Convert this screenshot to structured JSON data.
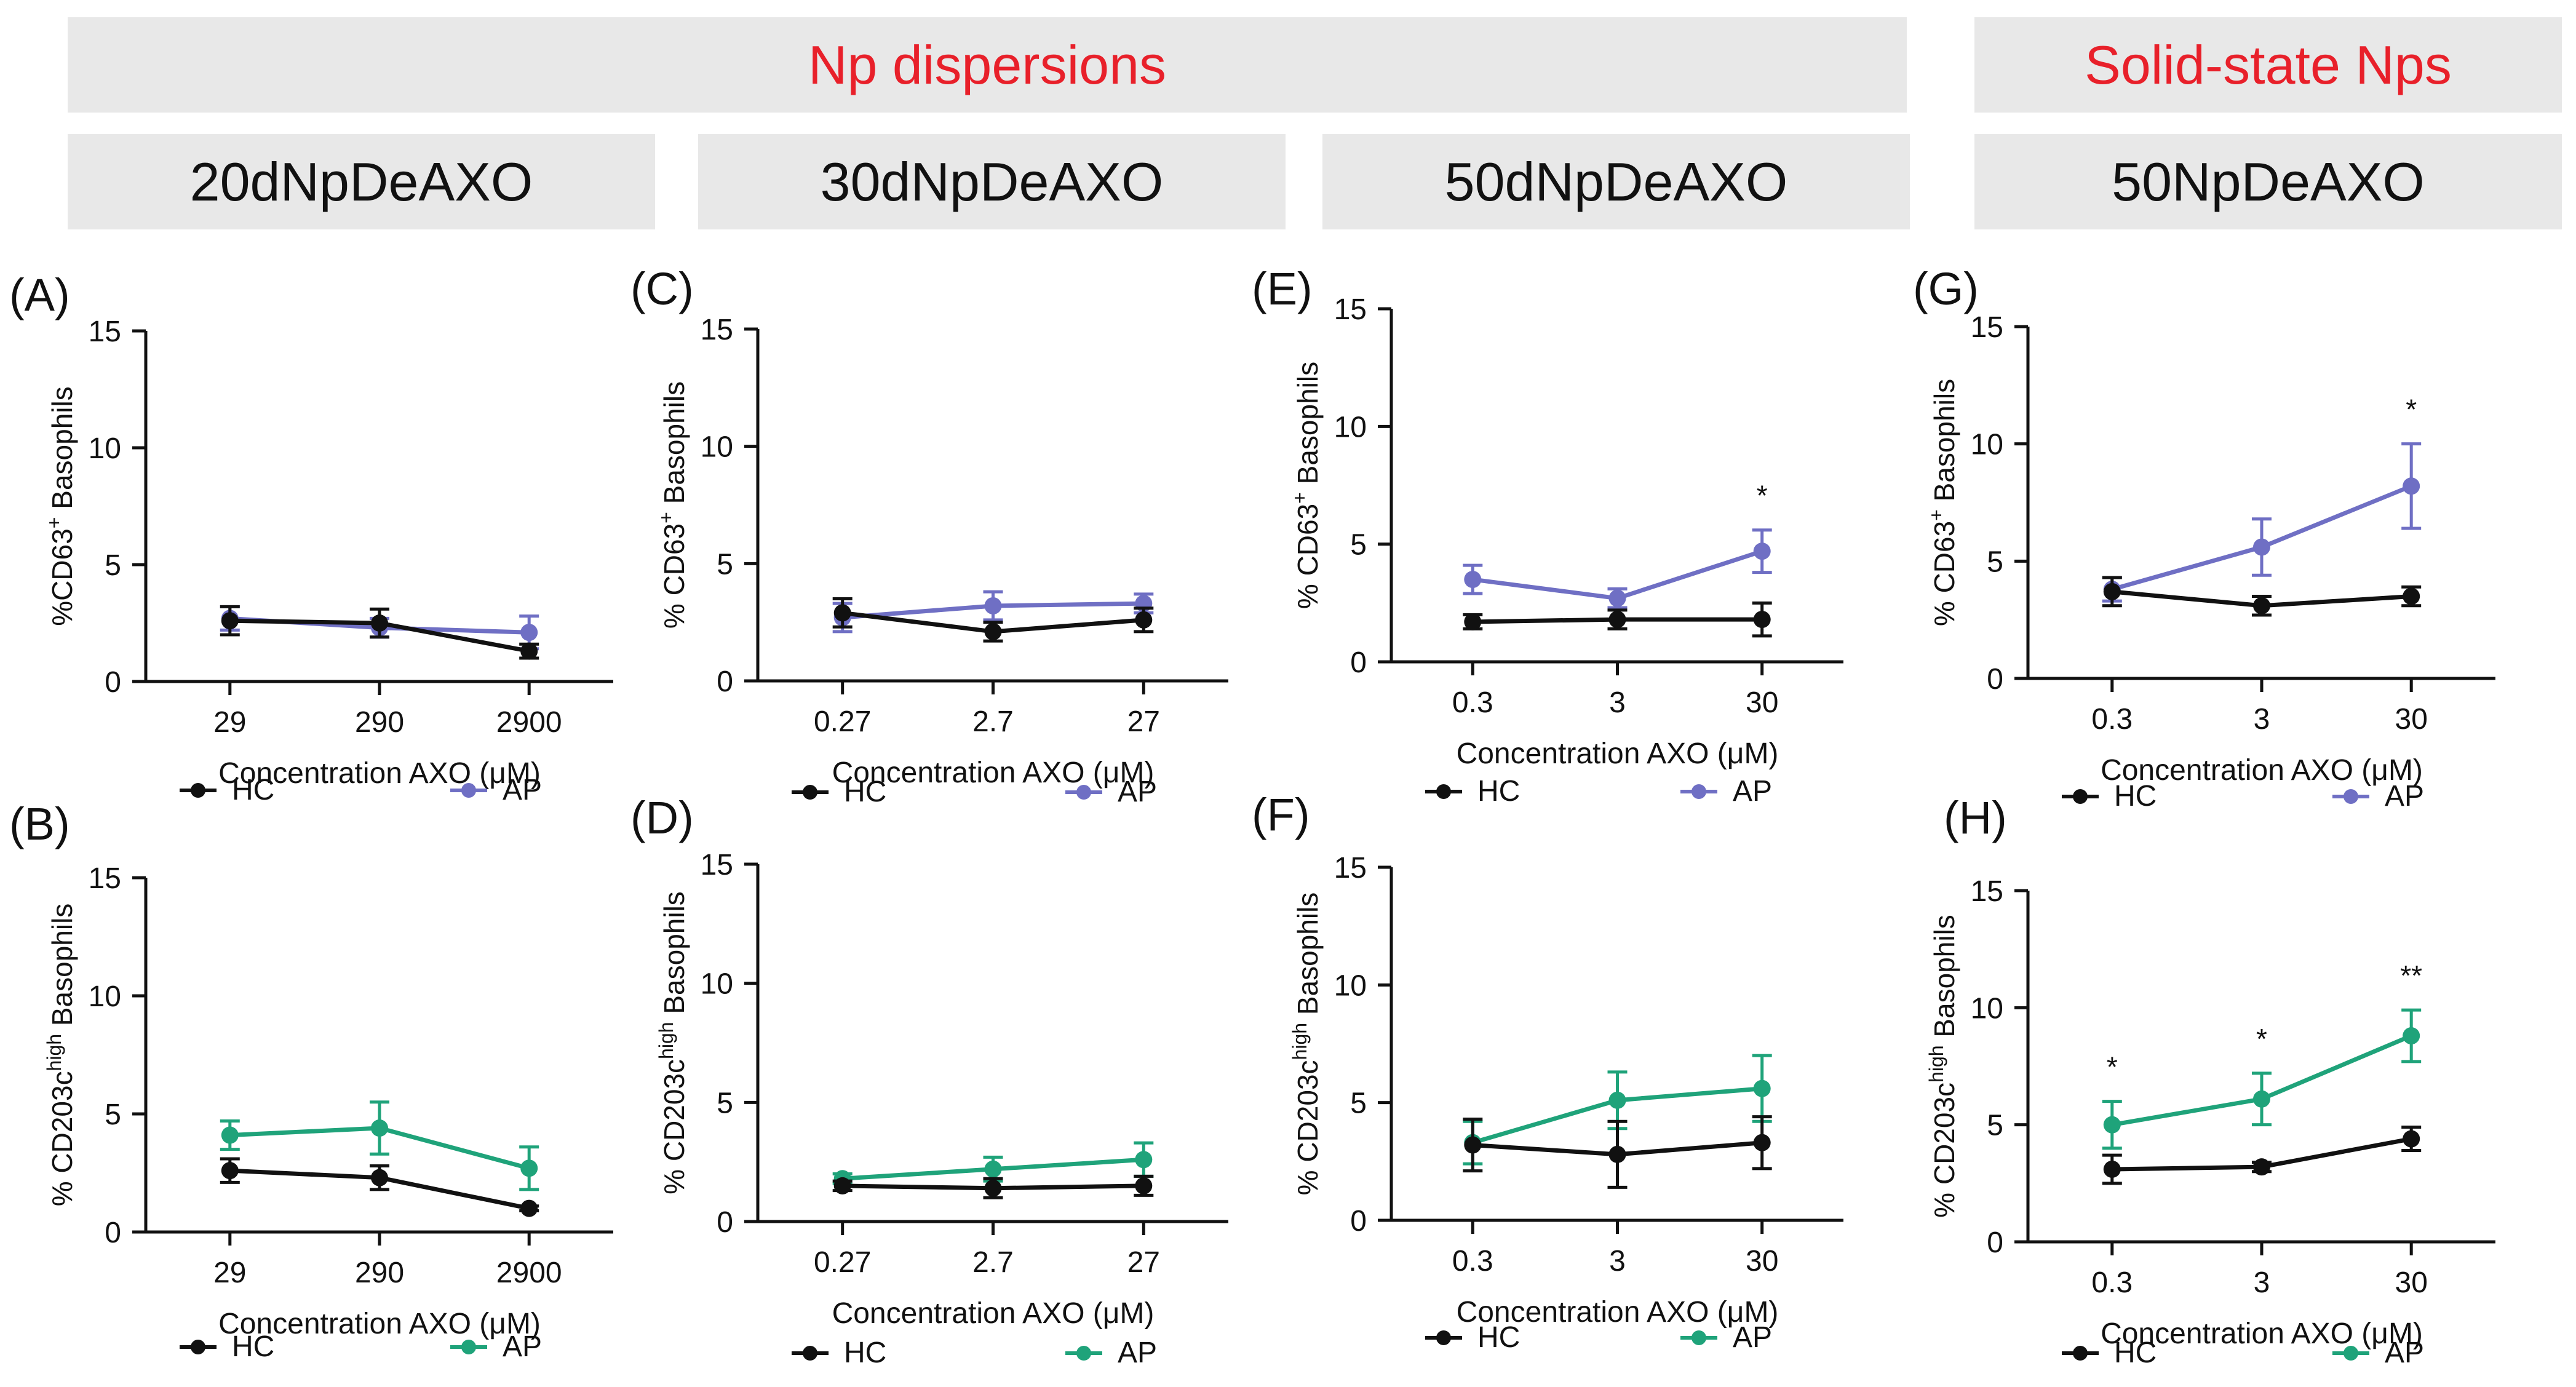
{
  "headers": {
    "group_dispersions": "Np dispersions",
    "group_solid": "Solid-state Nps",
    "col_1": "20dNpDeAXO",
    "col_2": "30dNpDeAXO",
    "col_3": "50dNpDeAXO",
    "col_4": "50NpDeAXO"
  },
  "colors": {
    "hc": "#111111",
    "ap_cd63": "#6f6fc4",
    "ap_cd203c": "#1fa37a",
    "header_red": "#e8202a",
    "banner_bg": "#e8e8e8"
  },
  "chart_data": [
    {
      "panel": "(A)",
      "type": "line",
      "ylabel_main": "%CD63",
      "ylabel_sup": "+",
      "ylabel_suffix": " Basophils",
      "xlabel": "Concentration AXO (μM)",
      "categories": [
        "29",
        "290",
        "2900"
      ],
      "ylim": [
        0,
        15
      ],
      "yticks": [
        "0",
        "5",
        "10",
        "15"
      ],
      "series": [
        {
          "name": "HC",
          "values": [
            2.6,
            2.5,
            1.3
          ],
          "errors": [
            0.6,
            0.6,
            0.3
          ]
        },
        {
          "name": "AP",
          "values": [
            2.7,
            2.3,
            2.1
          ],
          "errors": [
            0.5,
            0.4,
            0.7
          ]
        }
      ],
      "annotations": [
        "",
        "",
        ""
      ]
    },
    {
      "panel": "(B)",
      "type": "line",
      "ylabel_main": "% CD203c",
      "ylabel_sup": "high",
      "ylabel_suffix": " Basophils",
      "xlabel": "Concentration AXO (μM)",
      "categories": [
        "29",
        "290",
        "2900"
      ],
      "ylim": [
        0,
        15
      ],
      "yticks": [
        "0",
        "5",
        "10",
        "15"
      ],
      "series": [
        {
          "name": "HC",
          "values": [
            2.6,
            2.3,
            1.0
          ],
          "errors": [
            0.5,
            0.5,
            0.1
          ]
        },
        {
          "name": "AP",
          "values": [
            4.1,
            4.4,
            2.7
          ],
          "errors": [
            0.6,
            1.1,
            0.9
          ]
        }
      ],
      "annotations": [
        "",
        "",
        ""
      ]
    },
    {
      "panel": "(C)",
      "type": "line",
      "ylabel_main": "% CD63",
      "ylabel_sup": "+",
      "ylabel_suffix": " Basophils",
      "xlabel": "Concentration AXO (μM)",
      "categories": [
        "0.27",
        "2.7",
        "27"
      ],
      "ylim": [
        0,
        15
      ],
      "yticks": [
        "0",
        "5",
        "10",
        "15"
      ],
      "series": [
        {
          "name": "HC",
          "values": [
            2.9,
            2.1,
            2.6
          ],
          "errors": [
            0.6,
            0.4,
            0.5
          ]
        },
        {
          "name": "AP",
          "values": [
            2.7,
            3.2,
            3.3
          ],
          "errors": [
            0.6,
            0.6,
            0.4
          ]
        }
      ],
      "annotations": [
        "",
        "",
        ""
      ]
    },
    {
      "panel": "(D)",
      "type": "line",
      "ylabel_main": "% CD203c",
      "ylabel_sup": "high",
      "ylabel_suffix": " Basophils",
      "xlabel": "Concentration AXO (μM)",
      "categories": [
        "0.27",
        "2.7",
        "27"
      ],
      "ylim": [
        0,
        15
      ],
      "yticks": [
        "0",
        "5",
        "10",
        "15"
      ],
      "series": [
        {
          "name": "HC",
          "values": [
            1.5,
            1.4,
            1.5
          ],
          "errors": [
            0.2,
            0.4,
            0.4
          ]
        },
        {
          "name": "AP",
          "values": [
            1.8,
            2.2,
            2.6
          ],
          "errors": [
            0.2,
            0.5,
            0.7
          ]
        }
      ],
      "annotations": [
        "",
        "",
        ""
      ]
    },
    {
      "panel": "(E)",
      "type": "line",
      "ylabel_main": "% CD63",
      "ylabel_sup": "+",
      "ylabel_suffix": " Basophils",
      "xlabel": "Concentration AXO (μM)",
      "categories": [
        "0.3",
        "3",
        "30"
      ],
      "ylim": [
        0,
        15
      ],
      "yticks": [
        "0",
        "5",
        "10",
        "15"
      ],
      "series": [
        {
          "name": "HC",
          "values": [
            1.7,
            1.8,
            1.8
          ],
          "errors": [
            0.3,
            0.4,
            0.7
          ]
        },
        {
          "name": "AP",
          "values": [
            3.5,
            2.7,
            4.7
          ],
          "errors": [
            0.6,
            0.4,
            0.9
          ]
        }
      ],
      "annotations": [
        "",
        "",
        "*"
      ]
    },
    {
      "panel": "(F)",
      "type": "line",
      "ylabel_main": "% CD203c",
      "ylabel_sup": "high",
      "ylabel_suffix": " Basophils",
      "xlabel": "Concentration AXO (μM)",
      "categories": [
        "0.3",
        "3",
        "30"
      ],
      "ylim": [
        0,
        15
      ],
      "yticks": [
        "0",
        "5",
        "10",
        "15"
      ],
      "series": [
        {
          "name": "HC",
          "values": [
            3.2,
            2.8,
            3.3
          ],
          "errors": [
            1.1,
            1.4,
            1.1
          ]
        },
        {
          "name": "AP",
          "values": [
            3.3,
            5.1,
            5.6
          ],
          "errors": [
            0.9,
            1.2,
            1.4
          ]
        }
      ],
      "annotations": [
        "",
        "",
        ""
      ]
    },
    {
      "panel": "(G)",
      "type": "line",
      "ylabel_main": "% CD63",
      "ylabel_sup": "+",
      "ylabel_suffix": " Basophils",
      "xlabel": "Concentration AXO (μM)",
      "categories": [
        "0.3",
        "3",
        "30"
      ],
      "ylim": [
        0,
        15
      ],
      "yticks": [
        "0",
        "5",
        "10",
        "15"
      ],
      "series": [
        {
          "name": "HC",
          "values": [
            3.7,
            3.1,
            3.5
          ],
          "errors": [
            0.6,
            0.4,
            0.4
          ]
        },
        {
          "name": "AP",
          "values": [
            3.8,
            5.6,
            8.2
          ],
          "errors": [
            0.5,
            1.2,
            1.8
          ]
        }
      ],
      "annotations": [
        "",
        "",
        "*"
      ]
    },
    {
      "panel": "(H)",
      "type": "line",
      "ylabel_main": "% CD203c",
      "ylabel_sup": "high",
      "ylabel_suffix": " Basophils",
      "xlabel": "Concentration AXO (μM)",
      "categories": [
        "0.3",
        "3",
        "30"
      ],
      "ylim": [
        0,
        15
      ],
      "yticks": [
        "0",
        "5",
        "10",
        "15"
      ],
      "series": [
        {
          "name": "HC",
          "values": [
            3.1,
            3.2,
            4.4
          ],
          "errors": [
            0.6,
            0.2,
            0.5
          ]
        },
        {
          "name": "AP",
          "values": [
            5.0,
            6.1,
            8.8
          ],
          "errors": [
            1.0,
            1.1,
            1.1
          ]
        }
      ],
      "annotations": [
        "*",
        "*",
        "**"
      ]
    }
  ]
}
